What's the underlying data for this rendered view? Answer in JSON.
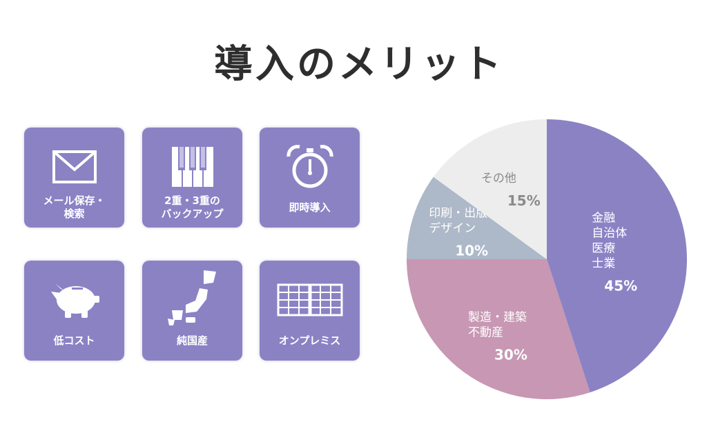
{
  "title": "導入のメリット",
  "tiles": [
    {
      "label": "メール保存・\n検索",
      "icon": "envelope-icon"
    },
    {
      "label": "2重・3重の\nバックアップ",
      "icon": "piano-keys-icon"
    },
    {
      "label": "即時導入",
      "icon": "alarm-clock-icon"
    },
    {
      "label": "低コスト",
      "icon": "piggy-bank-icon"
    },
    {
      "label": "純国産",
      "icon": "japan-map-icon"
    },
    {
      "label": "オンプレミス",
      "icon": "grid-calendar-icon"
    }
  ],
  "colors": {
    "tile": "#8b82c4",
    "finance": "#8b82c4",
    "manufacturing": "#c797b3",
    "printing": "#adb8c8",
    "other": "#ededed"
  },
  "chart_data": {
    "type": "pie",
    "slices": [
      {
        "label": [
          "金融",
          "自治体",
          "医療",
          "士業"
        ],
        "value": 45,
        "value_label": "45%",
        "color": "#8b82c4",
        "text_color": "#ffffff"
      },
      {
        "label": [
          "製造・建築",
          "不動産"
        ],
        "value": 30,
        "value_label": "30%",
        "color": "#c797b3",
        "text_color": "#ffffff"
      },
      {
        "label": [
          "印刷・出版",
          "デザイン"
        ],
        "value": 10,
        "value_label": "10%",
        "color": "#adb8c8",
        "text_color": "#ffffff"
      },
      {
        "label": [
          "その他"
        ],
        "value": 15,
        "value_label": "15%",
        "color": "#ededed",
        "text_color": "#8a8a8a"
      }
    ],
    "start": "12 o'clock",
    "direction": "clockwise"
  }
}
